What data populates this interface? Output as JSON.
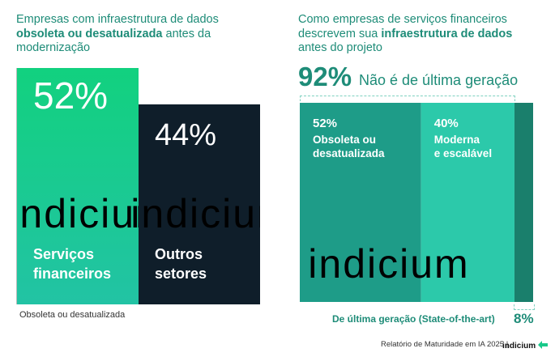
{
  "left": {
    "title_pre": "Empresas com infraestrutura de dados ",
    "title_bold": "obsoleta ou desatualizada",
    "title_post": " antes da modernização",
    "chart_data": {
      "type": "bar",
      "categories": [
        "Serviços financeiros",
        "Outros setores"
      ],
      "values": [
        52,
        44
      ],
      "value_labels": [
        "52%",
        "44%"
      ],
      "xlabel": "Obsoleta ou desatualizada",
      "ylim": [
        0,
        60
      ],
      "colors": [
        "#19c98a",
        "#0f1e2a"
      ]
    },
    "category_lines": [
      [
        "Serviços",
        "financeiros"
      ],
      [
        "Outros",
        "setores"
      ]
    ],
    "watermark": "indicium"
  },
  "right": {
    "title_pre": "Como empresas de serviços financeiros descrevem sua ",
    "title_bold": "infraestrutura de dados",
    "title_post": " antes do projeto",
    "headline_value": "92%",
    "headline_text": "Não é de última geração",
    "chart_data": {
      "type": "bar",
      "stacked": true,
      "series": [
        {
          "name": "Obsoleta ou desatualizada",
          "values": [
            52
          ],
          "label": "52%"
        },
        {
          "name": "Moderna e escalável",
          "values": [
            40
          ],
          "label": "40%"
        },
        {
          "name": "De última geração (State-of-the-art)",
          "values": [
            8
          ],
          "label": "8%"
        }
      ],
      "colors": [
        "#1e9c88",
        "#2cc9aa",
        "#1a7f6c"
      ]
    },
    "segment_lines": [
      [
        "Obsoleta ou",
        "desatualizada"
      ],
      [
        "Moderna",
        "e escalável"
      ]
    ],
    "watermark": "indicium"
  },
  "footer": {
    "text": "Relatório de Maturidade em IA 2025 |",
    "logo": "indicium"
  }
}
